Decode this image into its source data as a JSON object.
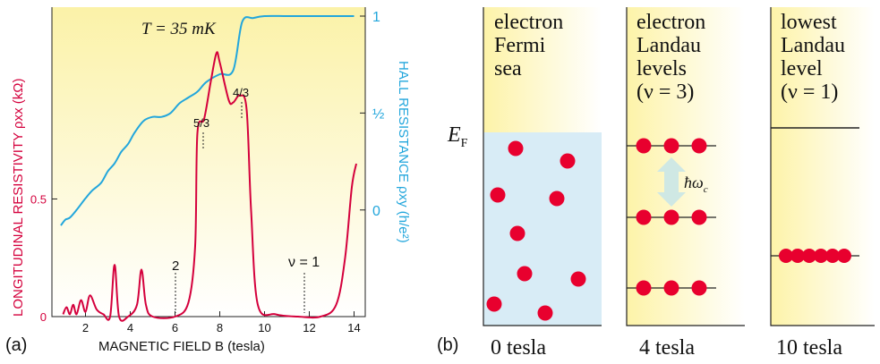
{
  "panel_a": {
    "label": "(a)",
    "temperature": "T = 35 mK",
    "x_axis_label": "MAGNETIC FIELD B (tesla)",
    "left_axis_label": "LONGITUDINAL RESISTIVITY ρxx (kΩ)",
    "right_axis_label": "HALL RESISTANCE ρxy (h/e²)",
    "x_ticks": [
      "2",
      "4",
      "6",
      "8",
      "10",
      "12",
      "14"
    ],
    "left_ticks": [
      "0",
      "0.5"
    ],
    "right_ticks": [
      "0",
      "½",
      "1"
    ],
    "annotations": {
      "nu2": "2",
      "nu1": "ν = 1",
      "frac53": "5/3",
      "frac43": "4/3"
    },
    "colors": {
      "rho_xx": "#d4003c",
      "rho_xy": "#22a6dc",
      "background": "#fbf6c0"
    }
  },
  "panel_b": {
    "label": "(b)",
    "fermi_label": "E",
    "fermi_sub": "F",
    "hbar_omega": "ħω",
    "hbar_sub": "c",
    "columns": [
      {
        "title_lines": [
          "electron",
          "Fermi",
          "sea"
        ],
        "field": "0 tesla"
      },
      {
        "title_lines": [
          "electron",
          "Landau",
          "levels",
          "(ν = 3)"
        ],
        "field": "4 tesla"
      },
      {
        "title_lines": [
          "lowest",
          "Landau",
          "level",
          "(ν = 1)"
        ],
        "field": "10 tesla"
      }
    ],
    "colors": {
      "electron": "#e8002e",
      "sea": "#d8ecf6",
      "gradient_start": "#fdf6b8"
    }
  },
  "chart_data": {
    "type": "line",
    "title": "T = 35 mK",
    "xlabel": "MAGNETIC FIELD B (tesla)",
    "ylabel": "LONGITUDINAL RESISTIVITY ρxx (kΩ)",
    "y2label": "HALL RESISTANCE ρxy (h/e²)",
    "xlim": [
      0.5,
      14.5
    ],
    "ylim": [
      0,
      1.3
    ],
    "y2lim": [
      -0.55,
      1
    ],
    "series": [
      {
        "name": "ρxx",
        "axis": "left",
        "x": [
          1.0,
          1.15,
          1.3,
          1.45,
          1.6,
          1.8,
          2.0,
          2.2,
          2.5,
          2.8,
          3.1,
          3.3,
          3.5,
          3.9,
          4.3,
          4.5,
          4.7,
          5.0,
          6.0,
          6.6,
          6.9,
          7.0,
          7.3,
          7.6,
          7.85,
          8.0,
          8.4,
          8.6,
          8.9,
          9.2,
          9.4,
          9.7,
          10.5,
          11.5,
          12.5,
          13.2,
          13.6,
          13.9,
          14.1
        ],
        "y": [
          0.01,
          0.04,
          0.01,
          0.05,
          0.01,
          0.07,
          0.02,
          0.09,
          0.03,
          0.01,
          0.0,
          0.22,
          0.0,
          0.0,
          0.05,
          0.2,
          0.05,
          0.0,
          0.0,
          0.06,
          0.3,
          0.78,
          0.84,
          1.0,
          1.12,
          1.08,
          0.92,
          0.91,
          0.94,
          0.88,
          0.45,
          0.05,
          0.01,
          0.0,
          0.0,
          0.05,
          0.25,
          0.55,
          0.65
        ]
      },
      {
        "name": "ρxy",
        "axis": "right",
        "x": [
          0.9,
          1.1,
          1.3,
          1.6,
          2.0,
          2.3,
          2.7,
          3.0,
          3.3,
          3.6,
          3.9,
          4.2,
          4.6,
          5.0,
          5.4,
          5.8,
          6.2,
          6.6,
          7.0,
          7.4,
          8.0,
          8.6,
          9.0,
          9.5,
          10.0,
          11.0,
          12.0,
          13.0,
          14.0
        ],
        "y": [
          -0.08,
          -0.05,
          -0.04,
          0.0,
          0.06,
          0.1,
          0.14,
          0.2,
          0.24,
          0.3,
          0.34,
          0.4,
          0.46,
          0.48,
          0.48,
          0.5,
          0.55,
          0.58,
          0.61,
          0.66,
          0.7,
          0.72,
          0.97,
          0.99,
          1.0,
          1.0,
          1.0,
          1.0,
          1.0
        ]
      }
    ]
  }
}
